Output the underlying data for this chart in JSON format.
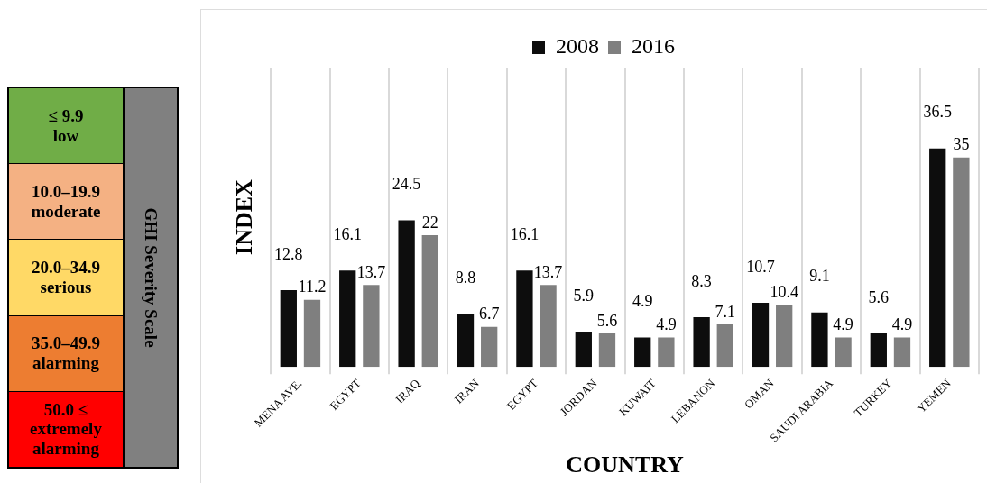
{
  "chart_data": [
    {
      "type": "other",
      "title": "GHI Severity Scale",
      "annotations": [
        "≤ 9.9\nlow",
        "10.0–19.9\nmoderate",
        "20.0–34.9\nserious",
        "35.0–49.9\nalarming",
        "50.0 ≤\nextremely\nalarming"
      ],
      "colors": [
        "#70ad47",
        "#f4b183",
        "#ffd966",
        "#ed7d31",
        "#ff0000"
      ]
    },
    {
      "type": "bar",
      "xlabel": "COUNTRY",
      "ylabel": "INDEX",
      "categories": [
        "MENA AVE.",
        "EGYPT",
        "IRAQ",
        "IRAN",
        "EGYPT",
        "JORDAN",
        "KUWAIT",
        "LEBANON",
        "OMAN",
        "SAUDI ARABIA",
        "TURKEY",
        "YEMEN"
      ],
      "series": [
        {
          "name": "2008",
          "color": "#0d0d0d",
          "values": [
            12.8,
            16.1,
            24.5,
            8.8,
            16.1,
            5.9,
            4.9,
            8.3,
            10.7,
            9.1,
            5.6,
            36.5
          ]
        },
        {
          "name": "2016",
          "color": "#7f7f7f",
          "values": [
            11.2,
            13.7,
            22,
            6.7,
            13.7,
            5.6,
            4.9,
            7.1,
            10.4,
            4.9,
            4.9,
            35
          ]
        }
      ],
      "data_labels": true,
      "grid": "x",
      "legend": "top"
    }
  ]
}
